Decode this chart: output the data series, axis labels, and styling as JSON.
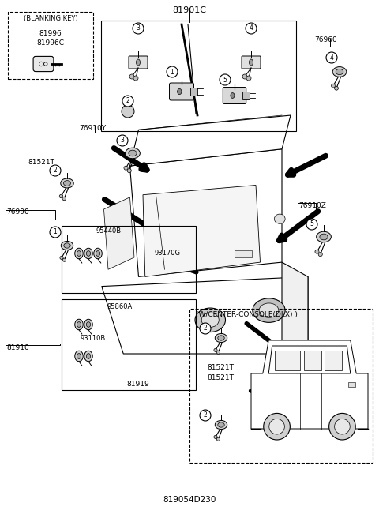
{
  "title": "819054D230",
  "bg_color": "#ffffff",
  "lc": "#000000",
  "tc": "#000000",
  "fig_w": 4.8,
  "fig_h": 6.56,
  "dpi": 100,
  "labels": {
    "main_title": "81901C",
    "blanking_key": "(BLANKING KEY)",
    "p81996": "81996",
    "p81996C": "81996C",
    "p76910Y": "76910Y",
    "p81521T": "81521T",
    "p76990": "76990",
    "p76960": "76960",
    "p76910Z": "76910Z",
    "p95440B": "95440B",
    "p93170G": "93170G",
    "p95860A": "95860A",
    "p93110B": "93110B",
    "p81919": "81919",
    "p81910": "81910",
    "wcenter": "(W/CENTER-CONSOLE(DLX) )",
    "p81521T_r1": "81521T",
    "p81521T_r2": "81521T",
    "bottom": "819054D230"
  }
}
